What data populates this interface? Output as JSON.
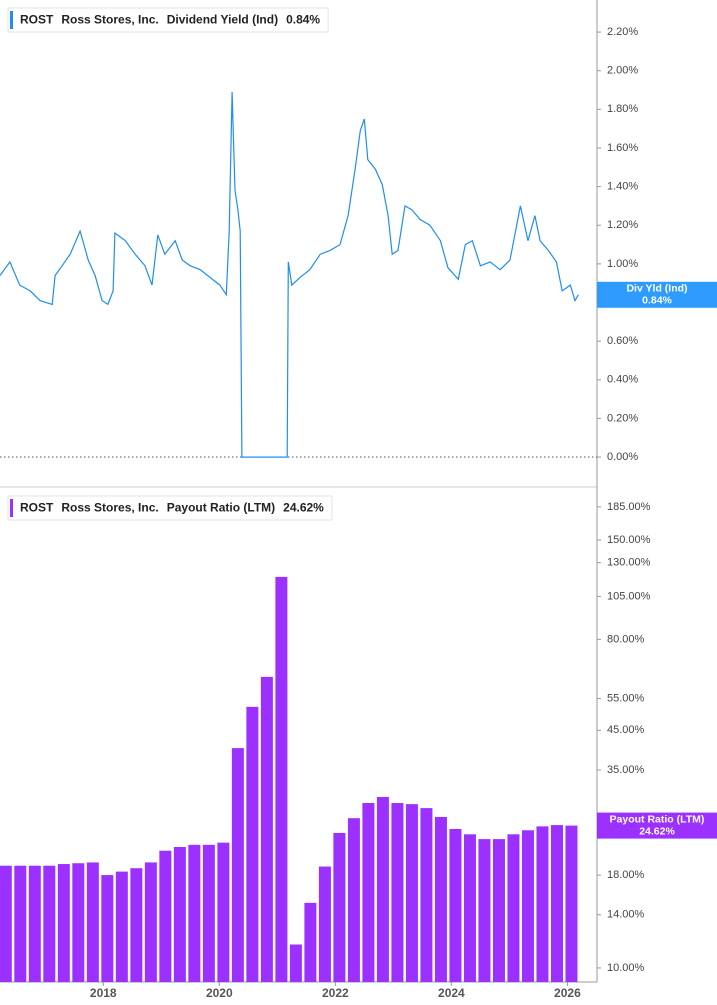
{
  "chart_data": [
    {
      "type": "line",
      "ticker": "ROST",
      "company": "Ross Stores, Inc.",
      "last_value_label": "0.84%",
      "badge_label": "Div Yld (Ind)",
      "xlim": [
        2016.22,
        2026.51
      ],
      "ylim": [
        -0.155,
        2.366
      ],
      "yticks": [
        {
          "value": 0,
          "label": "0.00%"
        },
        {
          "value": 0.2,
          "label": "0.20%"
        },
        {
          "value": 0.4,
          "label": "0.40%"
        },
        {
          "value": 0.6,
          "label": "0.60%"
        },
        {
          "value": 0.8,
          "label": "0.80%"
        },
        {
          "value": 1.0,
          "label": "1.00%"
        },
        {
          "value": 1.2,
          "label": "1.20%"
        },
        {
          "value": 1.4,
          "label": "1.40%"
        },
        {
          "value": 1.6,
          "label": "1.60%"
        },
        {
          "value": 1.8,
          "label": "1.80%"
        },
        {
          "value": 2.0,
          "label": "2.00%"
        },
        {
          "value": 2.2,
          "label": "2.20%"
        }
      ],
      "series": [
        {
          "name": "Dividend Yield (Ind)",
          "color": "#1f8ef1",
          "x": [
            2016.22,
            2016.39,
            2016.56,
            2016.74,
            2016.91,
            2017.12,
            2017.17,
            2017.29,
            2017.43,
            2017.6,
            2017.74,
            2017.86,
            2017.98,
            2018.08,
            2018.17,
            2018.2,
            2018.38,
            2018.55,
            2018.72,
            2018.84,
            2018.94,
            2019.06,
            2019.24,
            2019.36,
            2019.5,
            2019.67,
            2019.84,
            2020.01,
            2020.12,
            2020.17,
            2020.22,
            2020.27,
            2020.32,
            2020.36,
            2020.39,
            2021.17,
            2021.19,
            2021.25,
            2021.39,
            2021.56,
            2021.74,
            2021.91,
            2022.08,
            2022.22,
            2022.34,
            2022.43,
            2022.5,
            2022.56,
            2022.69,
            2022.81,
            2022.91,
            2022.98,
            2023.08,
            2023.2,
            2023.32,
            2023.46,
            2023.63,
            2023.81,
            2023.94,
            2024.12,
            2024.24,
            2024.36,
            2024.5,
            2024.67,
            2024.84,
            2025.01,
            2025.19,
            2025.32,
            2025.44,
            2025.53,
            2025.67,
            2025.81,
            2025.91,
            2026.05,
            2026.13,
            2026.19
          ],
          "values": [
            0.94,
            1.01,
            0.89,
            0.86,
            0.81,
            0.79,
            0.94,
            0.99,
            1.05,
            1.17,
            1.02,
            0.94,
            0.81,
            0.79,
            0.86,
            1.16,
            1.12,
            1.05,
            0.99,
            0.89,
            1.15,
            1.05,
            1.12,
            1.02,
            0.99,
            0.97,
            0.93,
            0.89,
            0.84,
            1.17,
            1.89,
            1.38,
            1.28,
            1.17,
            0,
            0,
            1.01,
            0.89,
            0.93,
            0.97,
            1.05,
            1.07,
            1.1,
            1.25,
            1.49,
            1.69,
            1.75,
            1.54,
            1.49,
            1.41,
            1.25,
            1.05,
            1.07,
            1.3,
            1.28,
            1.23,
            1.2,
            1.12,
            0.98,
            0.92,
            1.1,
            1.12,
            0.99,
            1.01,
            0.97,
            1.02,
            1.3,
            1.12,
            1.25,
            1.12,
            1.07,
            1.01,
            0.86,
            0.89,
            0.81,
            0.84
          ]
        }
      ]
    },
    {
      "type": "bar",
      "ticker": "ROST",
      "company": "Ross Stores, Inc.",
      "last_value_label": "24.62%",
      "log_scale": true,
      "xlim": [
        2016.22,
        2026.51
      ],
      "ylim": [
        9.15,
        202
      ],
      "xticks": [
        2018,
        2020,
        2022,
        2024,
        2026
      ],
      "yticks": [
        {
          "value": 10,
          "label": "10.00%"
        },
        {
          "value": 14,
          "label": "14.00%"
        },
        {
          "value": 18,
          "label": "18.00%"
        },
        {
          "value": 35,
          "label": "35.00%"
        },
        {
          "value": 45,
          "label": "45.00%"
        },
        {
          "value": 55,
          "label": "55.00%"
        },
        {
          "value": 80,
          "label": "80.00%"
        },
        {
          "value": 105,
          "label": "105.00%"
        },
        {
          "value": 130,
          "label": "130.00%"
        },
        {
          "value": 150,
          "label": "150.00%"
        },
        {
          "value": 185,
          "label": "185.00%"
        }
      ],
      "series": [
        {
          "name": "Payout Ratio (LTM)",
          "color": "#9b30ff",
          "x": [
            2016.32,
            2016.57,
            2016.82,
            2017.07,
            2017.32,
            2017.57,
            2017.82,
            2018.07,
            2018.32,
            2018.57,
            2018.82,
            2019.07,
            2019.32,
            2019.57,
            2019.82,
            2020.07,
            2020.32,
            2020.57,
            2020.82,
            2021.07,
            2021.32,
            2021.57,
            2021.82,
            2022.07,
            2022.32,
            2022.57,
            2022.82,
            2023.07,
            2023.32,
            2023.57,
            2023.82,
            2024.07,
            2024.32,
            2024.57,
            2024.82,
            2025.07,
            2025.32,
            2025.57,
            2025.82,
            2026.07
          ],
          "values": [
            19.1,
            19.1,
            19.1,
            19.1,
            19.3,
            19.4,
            19.5,
            18.0,
            18.4,
            18.8,
            19.5,
            21.0,
            21.5,
            21.8,
            21.8,
            22.1,
            40.2,
            52.2,
            63.1,
            118.8,
            11.6,
            15.1,
            19.0,
            23.5,
            25.8,
            28.4,
            29.5,
            28.4,
            28.2,
            27.5,
            26.0,
            24.1,
            23.3,
            22.6,
            22.6,
            23.3,
            23.9,
            24.5,
            24.7,
            24.62
          ]
        }
      ]
    }
  ]
}
